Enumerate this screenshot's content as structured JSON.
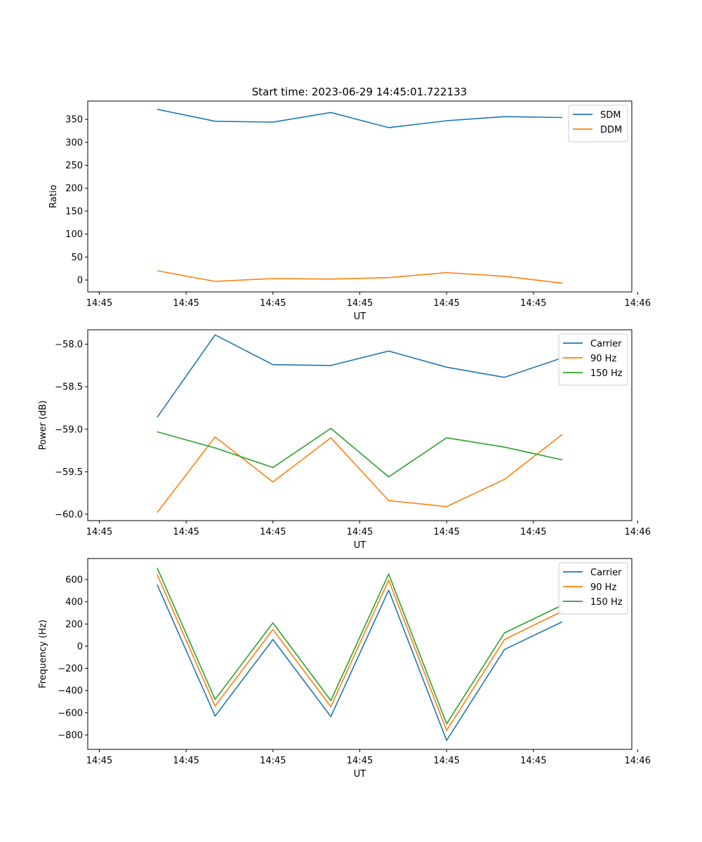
{
  "figure": {
    "title": "Start time: 2023-06-29 14:45:01.722133"
  },
  "chart_data": [
    {
      "type": "line",
      "title": "Start time: 2023-06-29 14:45:01.722133",
      "xlabel": "UT",
      "ylabel": "Ratio",
      "x": [
        1,
        2,
        3,
        4,
        5,
        6,
        7,
        8
      ],
      "xlim": [
        -0.2,
        9.2
      ],
      "xticks": [
        0,
        1.5,
        3,
        4.5,
        6,
        7.5,
        9.3
      ],
      "xticklabels": [
        "14:45",
        "14:45",
        "14:45",
        "14:45",
        "14:45",
        "14:45",
        "14:46"
      ],
      "ylim": [
        -26,
        390
      ],
      "yticks": [
        0,
        50,
        100,
        150,
        200,
        250,
        300,
        350
      ],
      "yticklabels": [
        "0",
        "50",
        "100",
        "150",
        "200",
        "250",
        "300",
        "350"
      ],
      "legend_position": "top-right",
      "series": [
        {
          "name": "SDM",
          "color": "#1f77b4",
          "values": [
            372,
            346,
            344,
            365,
            332,
            347,
            356,
            354
          ]
        },
        {
          "name": "DDM",
          "color": "#ff7f0e",
          "values": [
            20,
            -3,
            3,
            2,
            5,
            16,
            8,
            -7
          ]
        }
      ]
    },
    {
      "type": "line",
      "xlabel": "UT",
      "ylabel": "Power (dB)",
      "x": [
        1,
        2,
        3,
        4,
        5,
        6,
        7,
        8
      ],
      "xlim": [
        -0.2,
        9.2
      ],
      "xticks": [
        0,
        1.5,
        3,
        4.5,
        6,
        7.5,
        9.3
      ],
      "xticklabels": [
        "14:45",
        "14:45",
        "14:45",
        "14:45",
        "14:45",
        "14:45",
        "14:46"
      ],
      "ylim": [
        -60.075,
        -57.83
      ],
      "yticks": [
        -60.0,
        -59.5,
        -59.0,
        -58.5,
        -58.0
      ],
      "yticklabels": [
        "−60.0",
        "−59.5",
        "−59.0",
        "−58.5",
        "−58.0"
      ],
      "legend_position": "top-right",
      "series": [
        {
          "name": "Carrier",
          "color": "#1f77b4",
          "values": [
            -58.86,
            -57.89,
            -58.24,
            -58.25,
            -58.08,
            -58.27,
            -58.39,
            -58.16
          ]
        },
        {
          "name": "90 Hz",
          "color": "#ff7f0e",
          "values": [
            -59.98,
            -59.09,
            -59.62,
            -59.1,
            -59.84,
            -59.91,
            -59.59,
            -59.06
          ]
        },
        {
          "name": "150 Hz",
          "color": "#2ca02c",
          "values": [
            -59.03,
            -59.22,
            -59.45,
            -58.99,
            -59.56,
            -59.1,
            -59.21,
            -59.36
          ]
        }
      ]
    },
    {
      "type": "line",
      "xlabel": "UT",
      "ylabel": "Frequency (Hz)",
      "x": [
        1,
        2,
        3,
        4,
        5,
        6,
        7,
        8
      ],
      "xlim": [
        -0.2,
        9.2
      ],
      "xticks": [
        0,
        1.5,
        3,
        4.5,
        6,
        7.5,
        9.3
      ],
      "xticklabels": [
        "14:45",
        "14:45",
        "14:45",
        "14:45",
        "14:45",
        "14:45",
        "14:46"
      ],
      "ylim": [
        -930,
        790
      ],
      "yticks": [
        -800,
        -600,
        -400,
        -200,
        0,
        200,
        400,
        600
      ],
      "yticklabels": [
        "−800",
        "−600",
        "−400",
        "−200",
        "0",
        "200",
        "400",
        "600"
      ],
      "legend_position": "top-right",
      "series": [
        {
          "name": "Carrier",
          "color": "#1f77b4",
          "values": [
            555,
            -630,
            60,
            -635,
            505,
            -850,
            -30,
            220
          ]
        },
        {
          "name": "90 Hz",
          "color": "#ff7f0e",
          "values": [
            645,
            -540,
            150,
            -545,
            595,
            -760,
            60,
            315
          ]
        },
        {
          "name": "150 Hz",
          "color": "#2ca02c",
          "values": [
            705,
            -480,
            210,
            -490,
            650,
            -700,
            120,
            370
          ]
        }
      ]
    }
  ]
}
